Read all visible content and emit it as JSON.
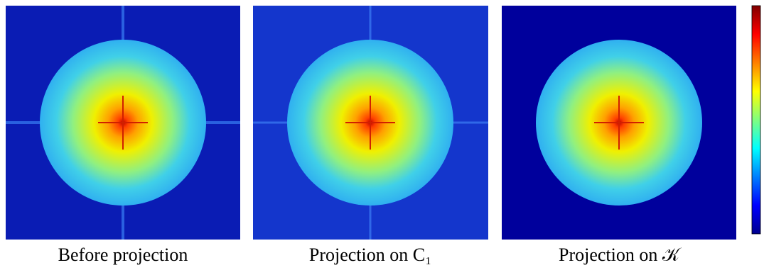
{
  "panels": [
    {
      "caption": "Before projection"
    },
    {
      "caption": "Projection on C₁"
    },
    {
      "caption": "Projection on 𝒦"
    }
  ]
}
